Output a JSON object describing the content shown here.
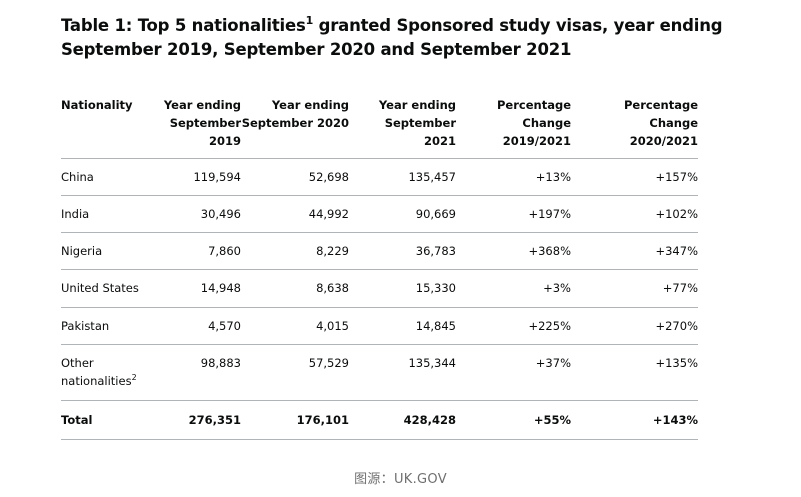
{
  "title": {
    "part1": "Table 1: Top 5 nationalities",
    "footnote": "1",
    "part2": " granted Sponsored study visas, year ending September 2019, September 2020 and September 2021"
  },
  "table": {
    "headers": [
      [
        "Nationality"
      ],
      [
        "Year ending",
        "September 2019"
      ],
      [
        "Year ending",
        "September 2020"
      ],
      [
        "Year ending",
        "September 2021"
      ],
      [
        "Percentage",
        "Change",
        "2019/2021"
      ],
      [
        "Percentage",
        "Change",
        "2020/2021"
      ]
    ],
    "rows": [
      {
        "nationality": "China",
        "footnote": "",
        "y2019": "119,594",
        "y2020": "52,698",
        "y2021": "135,457",
        "chg2019": "+13%",
        "chg2020": "+157%"
      },
      {
        "nationality": "India",
        "footnote": "",
        "y2019": "30,496",
        "y2020": "44,992",
        "y2021": "90,669",
        "chg2019": "+197%",
        "chg2020": "+102%"
      },
      {
        "nationality": "Nigeria",
        "footnote": "",
        "y2019": "7,860",
        "y2020": "8,229",
        "y2021": "36,783",
        "chg2019": "+368%",
        "chg2020": "+347%"
      },
      {
        "nationality": "United States",
        "footnote": "",
        "y2019": "14,948",
        "y2020": "8,638",
        "y2021": "15,330",
        "chg2019": "+3%",
        "chg2020": "+77%"
      },
      {
        "nationality": "Pakistan",
        "footnote": "",
        "y2019": "4,570",
        "y2020": "4,015",
        "y2021": "14,845",
        "chg2019": "+225%",
        "chg2020": "+270%"
      },
      {
        "nationality": "Other nationalities",
        "footnote": "2",
        "y2019": "98,883",
        "y2020": "57,529",
        "y2021": "135,344",
        "chg2019": "+37%",
        "chg2020": "+135%"
      }
    ],
    "total": {
      "label": "Total",
      "y2019": "276,351",
      "y2020": "176,101",
      "y2021": "428,428",
      "chg2019": "+55%",
      "chg2020": "+143%"
    }
  },
  "source": "图源：UK.GOV"
}
